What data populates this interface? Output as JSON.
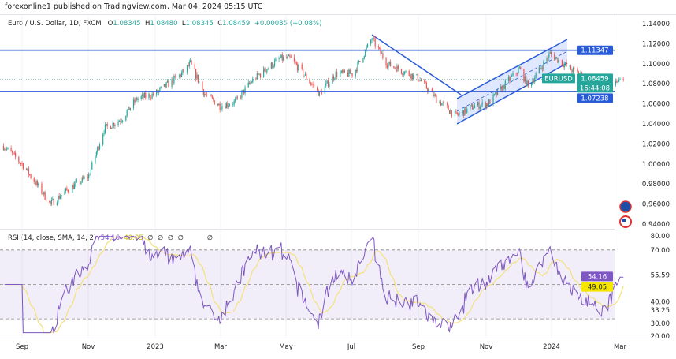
{
  "header": {
    "published": "forexonline1 published on TradingView.com, Mar 04, 2024 05:15 UTC",
    "symbol": "Euro / U.S. Dollar, 1D, FXCM",
    "open_label": "O",
    "open": "1.08345",
    "high_label": "H",
    "high": "1.08480",
    "low_label": "L",
    "low": "1.08345",
    "close_label": "C",
    "close": "1.08459",
    "change": "+0.00085 (+0.08%)"
  },
  "colors": {
    "up": "#26a69a",
    "down": "#ef5350",
    "line": "#2a5bd7",
    "rsi": "#7e57c2",
    "rsi_ma": "#f5e07a",
    "channel_fill": "#2962ff"
  },
  "chart_data": [
    {
      "type": "candlestick",
      "title": "Euro / U.S. Dollar, 1D, FXCM",
      "ylim": [
        0.94,
        1.14
      ],
      "y_ticks": [
        "1.14000",
        "1.12000",
        "1.10000",
        "1.08000",
        "1.06000",
        "1.04000",
        "1.02000",
        "1.00000",
        "0.98000",
        "0.96000",
        "0.94000"
      ],
      "x_ticks": [
        "Sep",
        "Nov",
        "2023",
        "Mar",
        "May",
        "Jul",
        "Sep",
        "Nov",
        "2024",
        "Mar"
      ],
      "approx_close_path": [
        [
          "2022-08-15",
          1.018
        ],
        [
          "2022-09-01",
          1.0
        ],
        [
          "2022-09-27",
          0.96
        ],
        [
          "2022-10-10",
          0.972
        ],
        [
          "2022-11-01",
          0.988
        ],
        [
          "2022-11-15",
          1.035
        ],
        [
          "2022-12-01",
          1.045
        ],
        [
          "2022-12-15",
          1.065
        ],
        [
          "2023-01-01",
          1.07
        ],
        [
          "2023-01-25",
          1.09
        ],
        [
          "2023-02-02",
          1.1
        ],
        [
          "2023-02-15",
          1.07
        ],
        [
          "2023-03-01",
          1.058
        ],
        [
          "2023-03-15",
          1.062
        ],
        [
          "2023-04-01",
          1.085
        ],
        [
          "2023-04-25",
          1.105
        ],
        [
          "2023-05-05",
          1.105
        ],
        [
          "2023-05-31",
          1.07
        ],
        [
          "2023-06-15",
          1.09
        ],
        [
          "2023-07-01",
          1.09
        ],
        [
          "2023-07-18",
          1.125
        ],
        [
          "2023-08-01",
          1.1
        ],
        [
          "2023-08-30",
          1.085
        ],
        [
          "2023-09-15",
          1.065
        ],
        [
          "2023-10-03",
          1.048
        ],
        [
          "2023-10-20",
          1.058
        ],
        [
          "2023-11-01",
          1.06
        ],
        [
          "2023-11-30",
          1.095
        ],
        [
          "2023-12-08",
          1.077
        ],
        [
          "2023-12-28",
          1.11
        ],
        [
          "2024-01-15",
          1.095
        ],
        [
          "2024-02-01",
          1.085
        ],
        [
          "2024-02-14",
          1.072
        ],
        [
          "2024-03-04",
          1.0846
        ]
      ],
      "levels": [
        {
          "label": "1.11347",
          "value": 1.11347
        },
        {
          "label": "1.07238",
          "value": 1.07238
        }
      ],
      "last_price": {
        "symbol": "EURUSD",
        "price": "1.08459",
        "countdown": "16:44:08",
        "value": 1.08459
      }
    },
    {
      "type": "line",
      "title": "RSI (14, close, SMA, 14, 2)",
      "legend_values": [
        "54.16",
        "49.05"
      ],
      "empty_values": [
        "∅",
        "∅",
        "∅",
        "∅",
        "∅"
      ],
      "ylim": [
        20,
        80
      ],
      "y_ticks": [
        "80.00",
        "70.00",
        "55.59",
        "40.00",
        "33.25",
        "30.00",
        "20.00"
      ],
      "band": [
        30,
        70
      ],
      "rsi_last": {
        "label": "54.16",
        "value": 54.16
      },
      "ma_last": {
        "label": "49.05",
        "value": 49.05
      }
    }
  ]
}
